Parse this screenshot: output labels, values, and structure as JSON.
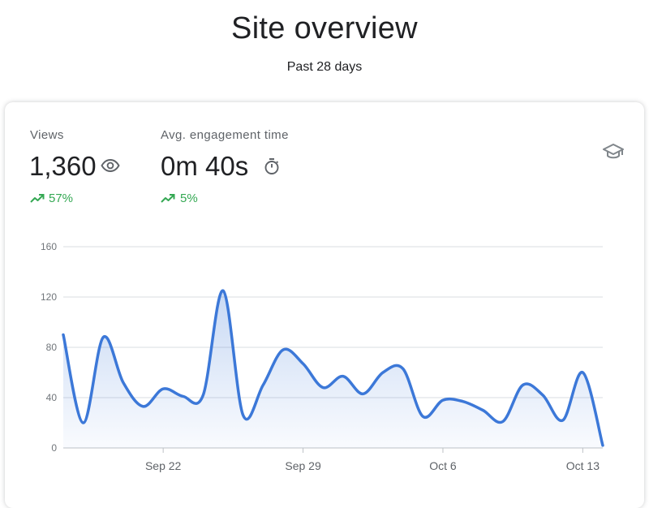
{
  "page": {
    "title": "Site overview",
    "subtitle": "Past 28 days"
  },
  "metrics": [
    {
      "label": "Views",
      "value": "1,360",
      "change": "57%",
      "icon": "eye-icon",
      "trend": "up"
    },
    {
      "label": "Avg. engagement time",
      "value": "0m 40s",
      "change": "5%",
      "icon": "timer-icon",
      "trend": "up"
    }
  ],
  "learn_icon": "graduation-cap-icon",
  "colors": {
    "line": "#3c78d8",
    "positive": "#34a853",
    "grid": "#dadce0",
    "axis_text": "#70757a"
  },
  "chart_data": {
    "type": "area",
    "title": "",
    "xlabel": "",
    "ylabel": "",
    "ylim": [
      0,
      160
    ],
    "yticks": [
      0,
      40,
      80,
      120,
      160
    ],
    "x_tick_labels": [
      {
        "label": "Sep 22",
        "index": 5
      },
      {
        "label": "Sep 29",
        "index": 12
      },
      {
        "label": "Oct 6",
        "index": 19
      },
      {
        "label": "Oct 13",
        "index": 26
      }
    ],
    "grid": true,
    "series": [
      {
        "values": [
          90,
          20,
          88,
          52,
          33,
          47,
          41,
          42,
          125,
          26,
          50,
          78,
          67,
          48,
          57,
          43,
          60,
          63,
          25,
          38,
          37,
          30,
          21,
          50,
          42,
          22,
          60,
          2
        ]
      }
    ]
  }
}
